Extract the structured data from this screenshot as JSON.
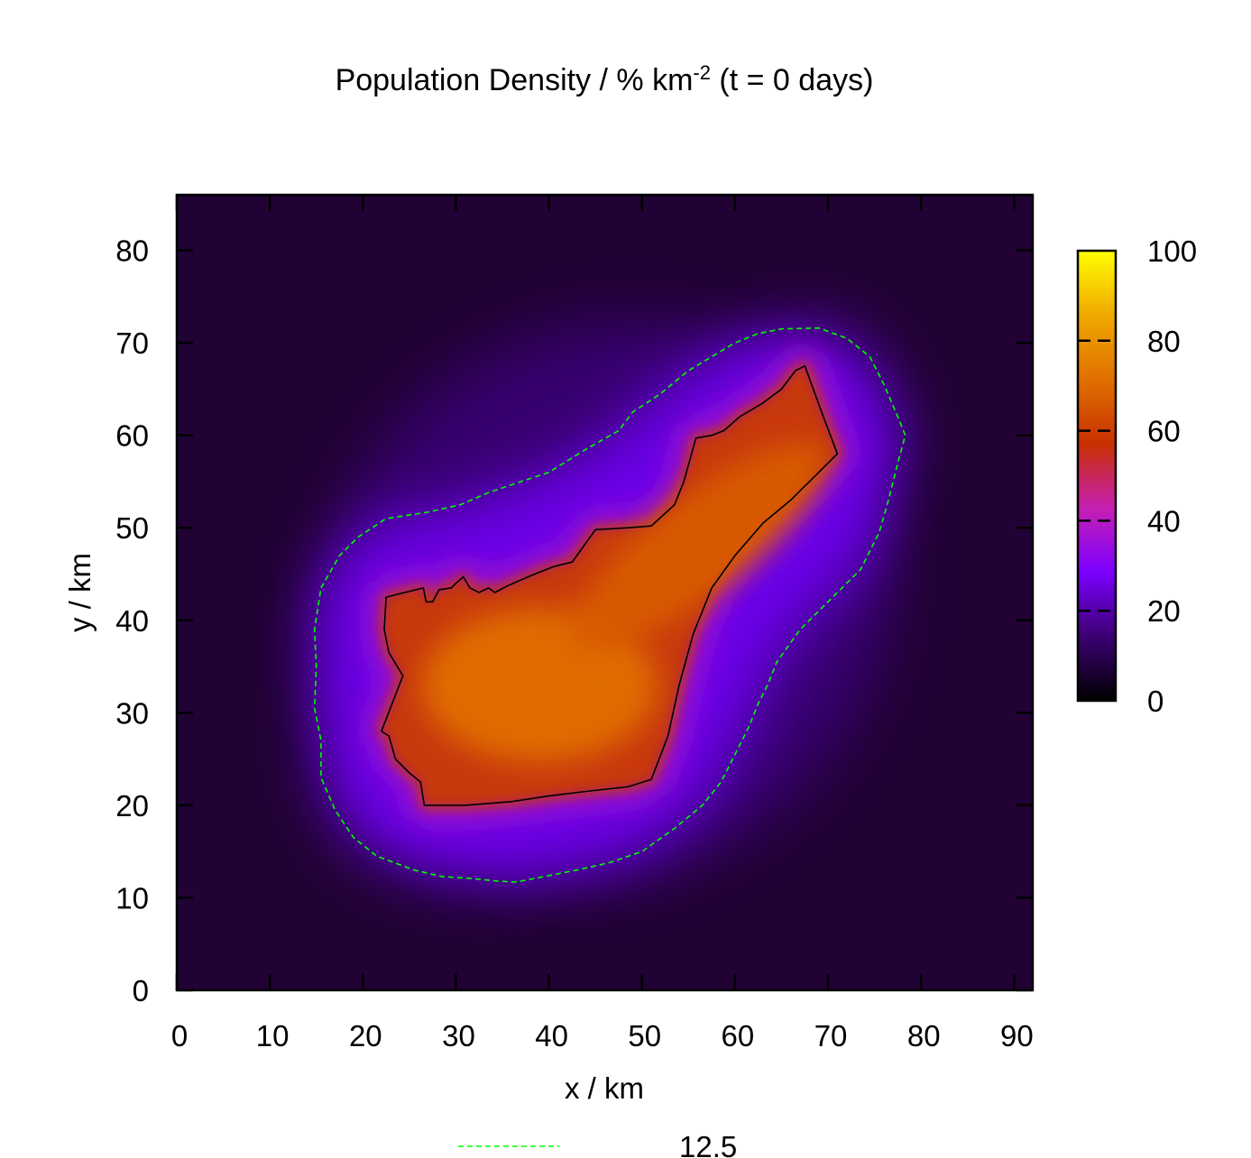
{
  "chart_data": {
    "type": "heatmap",
    "title": "Population Density / % km",
    "title_superscript": "-2",
    "title_suffix": " (t = 0 days)",
    "xlabel": "x / km",
    "ylabel": "y / km",
    "xlim": [
      0,
      92
    ],
    "ylim": [
      0,
      86
    ],
    "x_ticks": [
      0,
      10,
      20,
      30,
      40,
      50,
      60,
      70,
      80,
      90
    ],
    "y_ticks": [
      0,
      10,
      20,
      30,
      40,
      50,
      60,
      70,
      80
    ],
    "colorbar": {
      "range": [
        0,
        100
      ],
      "ticks": [
        0,
        20,
        40,
        60,
        80,
        100
      ],
      "palette": [
        "#000000",
        "#3b0072",
        "#7b00ff",
        "#c61fb3",
        "#c83000",
        "#e07000",
        "#f0a800",
        "#ffff00"
      ]
    },
    "density_peak": 72,
    "region_outline": [
      [
        22.5,
        42.5
      ],
      [
        26.5,
        43.5
      ],
      [
        26.8,
        42.0
      ],
      [
        27.5,
        42.0
      ],
      [
        28.2,
        43.3
      ],
      [
        29.5,
        43.5
      ],
      [
        30.0,
        44.0
      ],
      [
        30.8,
        44.7
      ],
      [
        31.5,
        43.5
      ],
      [
        32.5,
        43.0
      ],
      [
        33.5,
        43.5
      ],
      [
        34.2,
        43.0
      ],
      [
        35.5,
        43.7
      ],
      [
        38.0,
        44.8
      ],
      [
        40.5,
        45.8
      ],
      [
        42.5,
        46.3
      ],
      [
        45.0,
        49.8
      ],
      [
        48.5,
        50.0
      ],
      [
        51.0,
        50.2
      ],
      [
        53.5,
        52.5
      ],
      [
        54.5,
        55.0
      ],
      [
        55.8,
        59.7
      ],
      [
        57.5,
        60.0
      ],
      [
        58.8,
        60.5
      ],
      [
        60.5,
        62.0
      ],
      [
        63.0,
        63.5
      ],
      [
        65.0,
        65.0
      ],
      [
        66.5,
        67.0
      ],
      [
        67.5,
        67.5
      ],
      [
        69.5,
        62.0
      ],
      [
        71.0,
        58.0
      ],
      [
        68.5,
        55.5
      ],
      [
        66.0,
        53.0
      ],
      [
        63.0,
        50.5
      ],
      [
        60.0,
        47.0
      ],
      [
        57.5,
        43.5
      ],
      [
        55.5,
        38.5
      ],
      [
        54.0,
        33.0
      ],
      [
        52.8,
        27.5
      ],
      [
        51.0,
        22.8
      ],
      [
        48.5,
        22.0
      ],
      [
        44.0,
        21.5
      ],
      [
        40.0,
        21.0
      ],
      [
        36.0,
        20.4
      ],
      [
        31.0,
        20.0
      ],
      [
        26.6,
        20.0
      ],
      [
        26.2,
        22.5
      ],
      [
        25.0,
        23.5
      ],
      [
        23.5,
        25.0
      ],
      [
        22.8,
        27.5
      ],
      [
        22.0,
        28.0
      ],
      [
        24.3,
        34.0
      ],
      [
        22.8,
        36.5
      ],
      [
        22.3,
        39.0
      ]
    ],
    "contour_12_5": [
      [
        15.5,
        43.5
      ],
      [
        17.5,
        47.0
      ],
      [
        19.5,
        49.0
      ],
      [
        22.5,
        51.0
      ],
      [
        27.0,
        51.7
      ],
      [
        30.5,
        52.5
      ],
      [
        33.5,
        53.8
      ],
      [
        37.0,
        55.0
      ],
      [
        40.0,
        56.0
      ],
      [
        44.0,
        58.5
      ],
      [
        47.5,
        60.5
      ],
      [
        49.0,
        62.5
      ],
      [
        52.0,
        64.5
      ],
      [
        55.0,
        67.0
      ],
      [
        57.5,
        68.5
      ],
      [
        60.0,
        70.0
      ],
      [
        62.5,
        71.0
      ],
      [
        65.0,
        71.5
      ],
      [
        69.0,
        71.6
      ],
      [
        72.0,
        70.5
      ],
      [
        74.5,
        68.5
      ],
      [
        76.0,
        65.5
      ],
      [
        77.5,
        62.0
      ],
      [
        78.3,
        60.0
      ],
      [
        77.5,
        57.0
      ],
      [
        76.5,
        53.0
      ],
      [
        75.5,
        49.5
      ],
      [
        73.5,
        45.5
      ],
      [
        71.0,
        43.0
      ],
      [
        69.0,
        41.0
      ],
      [
        67.0,
        39.0
      ],
      [
        64.5,
        35.5
      ],
      [
        63.5,
        33.0
      ],
      [
        62.5,
        31.0
      ],
      [
        61.5,
        28.5
      ],
      [
        60.0,
        25.5
      ],
      [
        58.5,
        22.5
      ],
      [
        56.5,
        20.0
      ],
      [
        53.5,
        17.5
      ],
      [
        50.0,
        15.0
      ],
      [
        46.5,
        13.8
      ],
      [
        43.0,
        13.0
      ],
      [
        39.0,
        12.2
      ],
      [
        36.5,
        11.7
      ],
      [
        34.5,
        11.8
      ],
      [
        31.5,
        12.1
      ],
      [
        28.5,
        12.3
      ],
      [
        25.5,
        13.0
      ],
      [
        21.5,
        14.5
      ],
      [
        19.0,
        16.5
      ],
      [
        17.0,
        19.5
      ],
      [
        15.5,
        23.0
      ],
      [
        15.5,
        27.0
      ],
      [
        14.8,
        30.5
      ],
      [
        15.0,
        35.0
      ],
      [
        14.8,
        39.0
      ]
    ],
    "legend": {
      "label": "12.5",
      "line_color": "#00ff00",
      "line_style": "dashed",
      "placement": "bottom-center"
    }
  }
}
